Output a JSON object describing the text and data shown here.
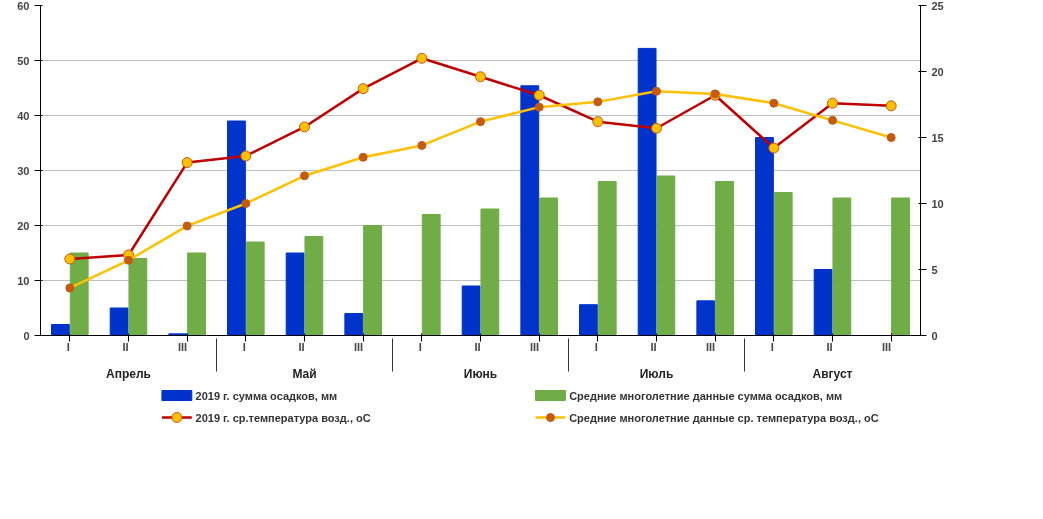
{
  "chart_data": {
    "type": "bar",
    "categories": [
      "I",
      "II",
      "III",
      "I",
      "II",
      "III",
      "I",
      "II",
      "III",
      "I",
      "II",
      "III",
      "I",
      "II",
      "III"
    ],
    "annotations": [
      "Апрель",
      "Май",
      "Июнь",
      "Июль",
      "Август"
    ],
    "series": [
      {
        "name": "2019 г. сумма осадков, мм",
        "color": "#0033cc",
        "values": [
          2,
          5,
          0.3,
          39,
          15,
          4,
          0,
          9,
          45.4,
          5.6,
          52.2,
          6.3,
          36,
          12,
          0
        ]
      },
      {
        "name": "Средние многолетние данные сумма осадков, мм",
        "color": "#70ad47",
        "values": [
          15,
          14,
          15,
          17,
          18,
          20,
          22,
          23,
          25,
          28,
          29,
          28,
          26,
          25,
          25
        ]
      },
      {
        "name": "2019 г. ср.температура возд., оС",
        "color": "#c00000",
        "type": "line",
        "axis": "y2",
        "values": [
          5.8,
          6.1,
          13.1,
          13.6,
          15.8,
          18.7,
          21.0,
          19.6,
          18.2,
          16.2,
          15.7,
          18.2,
          14.2,
          17.6,
          17.4
        ]
      },
      {
        "name": "Средние многолетние данные ср. температура возд., оС",
        "color": "#ffc000",
        "type": "line",
        "axis": "y2",
        "values": [
          3.6,
          5.7,
          8.3,
          10.0,
          12.1,
          13.5,
          14.4,
          16.2,
          17.3,
          17.7,
          18.5,
          18.3,
          17.6,
          16.3,
          15.0
        ]
      }
    ],
    "ylim": [
      0,
      60
    ],
    "yticks": [
      0,
      10,
      20,
      30,
      40,
      50,
      60
    ],
    "y2lim": [
      0,
      25
    ],
    "y2ticks": [
      0,
      5,
      10,
      15,
      20,
      25
    ],
    "grid": "y",
    "legend": "bottom",
    "marker": "circle",
    "line_style": "solid"
  }
}
